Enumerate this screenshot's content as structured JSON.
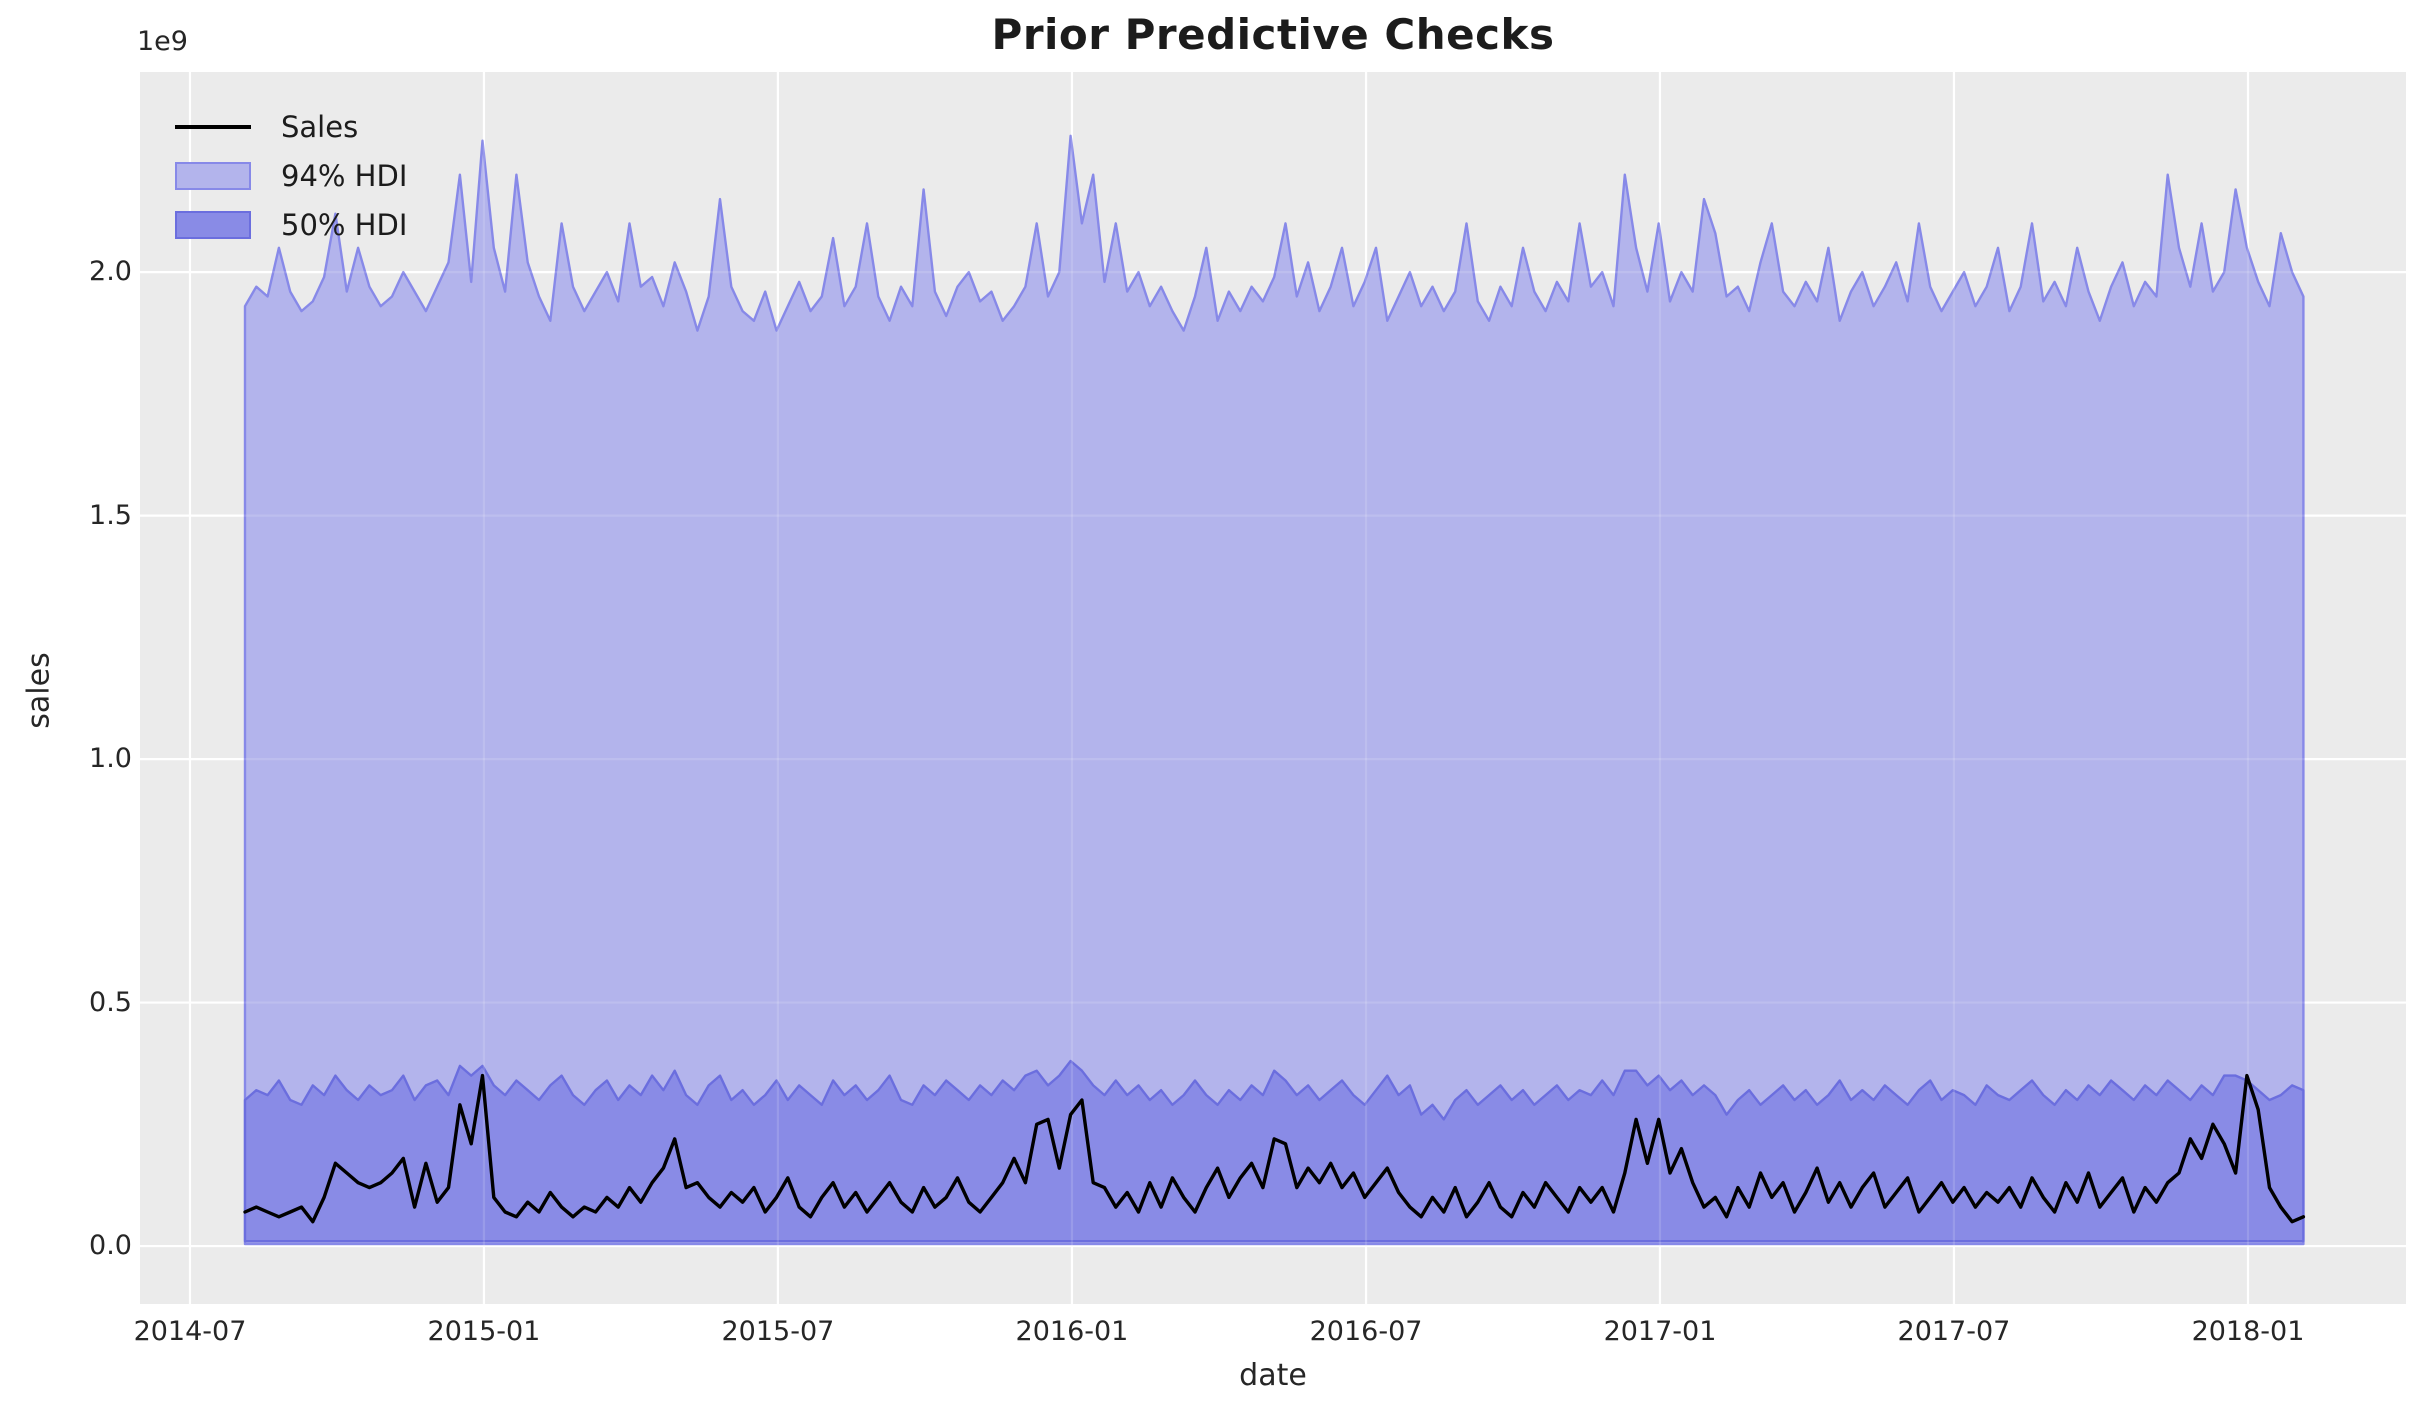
{
  "chart_data": {
    "type": "line+area",
    "title": "Prior Predictive Checks",
    "xlabel": "date",
    "ylabel": "sales",
    "y_offset_text": "1e9",
    "value_units": "units of 1e9 (billions), matching the axis offset text",
    "legend": [
      {
        "label": "Sales",
        "kind": "line",
        "color": "#000000"
      },
      {
        "label": "94% HDI",
        "kind": "patch",
        "fill": "#b3b4ec",
        "edge": "#8789e8"
      },
      {
        "label": "50% HDI",
        "kind": "patch",
        "fill": "#898be6",
        "edge": "#6b6ede"
      }
    ],
    "x_tick_labels": [
      "2014-07",
      "2015-01",
      "2015-07",
      "2016-01",
      "2016-07",
      "2017-01",
      "2017-07",
      "2018-01"
    ],
    "x_tick_weeks": [
      -4.86,
      21.13,
      47.12,
      73.12,
      99.12,
      125.11,
      151.1,
      177.1
    ],
    "y_tick_labels": [
      "0.0",
      "0.5",
      "1.0",
      "1.5",
      "2.0"
    ],
    "y_tick_values": [
      0,
      0.5,
      1.0,
      1.5,
      2.0
    ],
    "xlim_weeks": [
      -9.28,
      191.07
    ],
    "ylim": [
      -0.119,
      2.411
    ],
    "grid": true,
    "legend_position": "upper left",
    "x_start_date": "2014-08-03",
    "x_step_days": 7,
    "n_points": 183,
    "colors": {
      "figure_bg": "#ffffff",
      "plot_bg": "#ebebeb",
      "grid": "#ffffff",
      "hdi94_fill": "#b3b4ec",
      "hdi94_edge": "#8789e8",
      "hdi50_fill": "#898be6",
      "hdi50_edge": "#6b6ede",
      "sales_line": "#000000",
      "text": "#262626"
    },
    "series": {
      "hdi94_lower_const": 0.004,
      "hdi50_lower_const": 0.01,
      "sales": [
        0.07,
        0.08,
        0.07,
        0.06,
        0.07,
        0.08,
        0.05,
        0.1,
        0.17,
        0.15,
        0.13,
        0.12,
        0.13,
        0.15,
        0.18,
        0.08,
        0.17,
        0.09,
        0.12,
        0.29,
        0.21,
        0.35,
        0.1,
        0.07,
        0.06,
        0.09,
        0.07,
        0.11,
        0.08,
        0.06,
        0.08,
        0.07,
        0.1,
        0.08,
        0.12,
        0.09,
        0.13,
        0.16,
        0.22,
        0.12,
        0.13,
        0.1,
        0.08,
        0.11,
        0.09,
        0.12,
        0.07,
        0.1,
        0.14,
        0.08,
        0.06,
        0.1,
        0.13,
        0.08,
        0.11,
        0.07,
        0.1,
        0.13,
        0.09,
        0.07,
        0.12,
        0.08,
        0.1,
        0.14,
        0.09,
        0.07,
        0.1,
        0.13,
        0.18,
        0.13,
        0.25,
        0.26,
        0.16,
        0.27,
        0.3,
        0.13,
        0.12,
        0.08,
        0.11,
        0.07,
        0.13,
        0.08,
        0.14,
        0.1,
        0.07,
        0.12,
        0.16,
        0.1,
        0.14,
        0.17,
        0.12,
        0.22,
        0.21,
        0.12,
        0.16,
        0.13,
        0.17,
        0.12,
        0.15,
        0.1,
        0.13,
        0.16,
        0.11,
        0.08,
        0.06,
        0.1,
        0.07,
        0.12,
        0.06,
        0.09,
        0.13,
        0.08,
        0.06,
        0.11,
        0.08,
        0.13,
        0.1,
        0.07,
        0.12,
        0.09,
        0.12,
        0.07,
        0.15,
        0.26,
        0.17,
        0.26,
        0.15,
        0.2,
        0.13,
        0.08,
        0.1,
        0.06,
        0.12,
        0.08,
        0.15,
        0.1,
        0.13,
        0.07,
        0.11,
        0.16,
        0.09,
        0.13,
        0.08,
        0.12,
        0.15,
        0.08,
        0.11,
        0.14,
        0.07,
        0.1,
        0.13,
        0.09,
        0.12,
        0.08,
        0.11,
        0.09,
        0.12,
        0.08,
        0.14,
        0.1,
        0.07,
        0.13,
        0.09,
        0.15,
        0.08,
        0.11,
        0.14,
        0.07,
        0.12,
        0.09,
        0.13,
        0.15,
        0.22,
        0.18,
        0.25,
        0.21,
        0.15,
        0.35,
        0.28,
        0.12,
        0.08,
        0.05,
        0.06
      ],
      "hdi94_upper": [
        1.93,
        1.97,
        1.95,
        2.05,
        1.96,
        1.92,
        1.94,
        1.99,
        2.12,
        1.96,
        2.05,
        1.97,
        1.93,
        1.95,
        2.0,
        1.96,
        1.92,
        1.97,
        2.02,
        2.2,
        1.98,
        2.27,
        2.05,
        1.96,
        2.2,
        2.02,
        1.95,
        1.9,
        2.1,
        1.97,
        1.92,
        1.96,
        2.0,
        1.94,
        2.1,
        1.97,
        1.99,
        1.93,
        2.02,
        1.96,
        1.88,
        1.95,
        2.15,
        1.97,
        1.92,
        1.9,
        1.96,
        1.88,
        1.93,
        1.98,
        1.92,
        1.95,
        2.07,
        1.93,
        1.97,
        2.1,
        1.95,
        1.9,
        1.97,
        1.93,
        2.17,
        1.96,
        1.91,
        1.97,
        2.0,
        1.94,
        1.96,
        1.9,
        1.93,
        1.97,
        2.1,
        1.95,
        2.0,
        2.28,
        2.1,
        2.2,
        1.98,
        2.1,
        1.96,
        2.0,
        1.93,
        1.97,
        1.92,
        1.88,
        1.95,
        2.05,
        1.9,
        1.96,
        1.92,
        1.97,
        1.94,
        1.99,
        2.1,
        1.95,
        2.02,
        1.92,
        1.97,
        2.05,
        1.93,
        1.98,
        2.05,
        1.9,
        1.95,
        2.0,
        1.93,
        1.97,
        1.92,
        1.96,
        2.1,
        1.94,
        1.9,
        1.97,
        1.93,
        2.05,
        1.96,
        1.92,
        1.98,
        1.94,
        2.1,
        1.97,
        2.0,
        1.93,
        2.2,
        2.05,
        1.96,
        2.1,
        1.94,
        2.0,
        1.96,
        2.15,
        2.08,
        1.95,
        1.97,
        1.92,
        2.02,
        2.1,
        1.96,
        1.93,
        1.98,
        1.94,
        2.05,
        1.9,
        1.96,
        2.0,
        1.93,
        1.97,
        2.02,
        1.94,
        2.1,
        1.97,
        1.92,
        1.96,
        2.0,
        1.93,
        1.97,
        2.05,
        1.92,
        1.97,
        2.1,
        1.94,
        1.98,
        1.93,
        2.05,
        1.96,
        1.9,
        1.97,
        2.02,
        1.93,
        1.98,
        1.95,
        2.2,
        2.05,
        1.97,
        2.1,
        1.96,
        2.0,
        2.17,
        2.05,
        1.98,
        1.93,
        2.08,
        2.0,
        1.95
      ],
      "hdi50_upper": [
        0.3,
        0.32,
        0.31,
        0.34,
        0.3,
        0.29,
        0.33,
        0.31,
        0.35,
        0.32,
        0.3,
        0.33,
        0.31,
        0.32,
        0.35,
        0.3,
        0.33,
        0.34,
        0.31,
        0.37,
        0.35,
        0.37,
        0.33,
        0.31,
        0.34,
        0.32,
        0.3,
        0.33,
        0.35,
        0.31,
        0.29,
        0.32,
        0.34,
        0.3,
        0.33,
        0.31,
        0.35,
        0.32,
        0.36,
        0.31,
        0.29,
        0.33,
        0.35,
        0.3,
        0.32,
        0.29,
        0.31,
        0.34,
        0.3,
        0.33,
        0.31,
        0.29,
        0.34,
        0.31,
        0.33,
        0.3,
        0.32,
        0.35,
        0.3,
        0.29,
        0.33,
        0.31,
        0.34,
        0.32,
        0.3,
        0.33,
        0.31,
        0.34,
        0.32,
        0.35,
        0.36,
        0.33,
        0.35,
        0.38,
        0.36,
        0.33,
        0.31,
        0.34,
        0.31,
        0.33,
        0.3,
        0.32,
        0.29,
        0.31,
        0.34,
        0.31,
        0.29,
        0.32,
        0.3,
        0.33,
        0.31,
        0.36,
        0.34,
        0.31,
        0.33,
        0.3,
        0.32,
        0.34,
        0.31,
        0.29,
        0.32,
        0.35,
        0.31,
        0.33,
        0.27,
        0.29,
        0.26,
        0.3,
        0.32,
        0.29,
        0.31,
        0.33,
        0.3,
        0.32,
        0.29,
        0.31,
        0.33,
        0.3,
        0.32,
        0.31,
        0.34,
        0.31,
        0.36,
        0.36,
        0.33,
        0.35,
        0.32,
        0.34,
        0.31,
        0.33,
        0.31,
        0.27,
        0.3,
        0.32,
        0.29,
        0.31,
        0.33,
        0.3,
        0.32,
        0.29,
        0.31,
        0.34,
        0.3,
        0.32,
        0.3,
        0.33,
        0.31,
        0.29,
        0.32,
        0.34,
        0.3,
        0.32,
        0.31,
        0.29,
        0.33,
        0.31,
        0.3,
        0.32,
        0.34,
        0.31,
        0.29,
        0.32,
        0.3,
        0.33,
        0.31,
        0.34,
        0.32,
        0.3,
        0.33,
        0.31,
        0.34,
        0.32,
        0.3,
        0.33,
        0.31,
        0.35,
        0.35,
        0.34,
        0.32,
        0.3,
        0.31,
        0.33,
        0.32
      ]
    }
  }
}
